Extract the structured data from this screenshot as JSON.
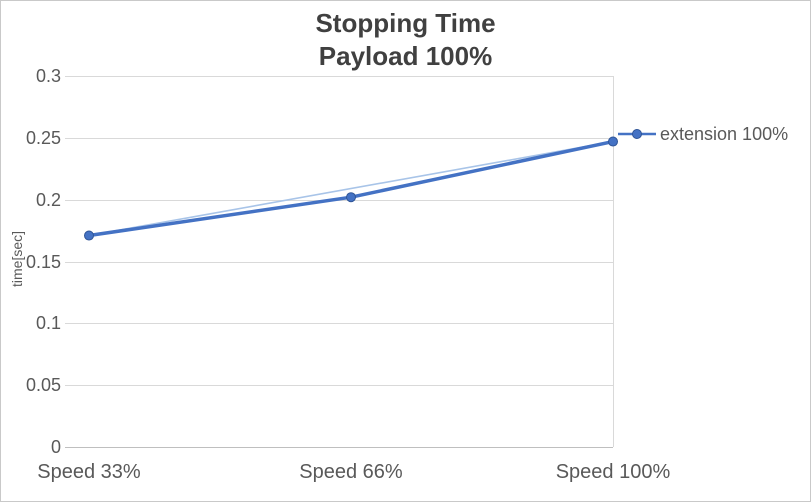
{
  "chart_data": {
    "type": "line",
    "title": "Stopping Time",
    "subtitle": "Payload 100%",
    "xlabel": "",
    "ylabel": "time[sec]",
    "categories": [
      "Speed 33%",
      "Speed 66%",
      "Speed 100%"
    ],
    "series": [
      {
        "name": "extension 100%",
        "values": [
          0.171,
          0.202,
          0.247
        ],
        "color": "#4472C4",
        "marker": "circle"
      }
    ],
    "trendline": {
      "type": "linear",
      "color": "#A8C4E8"
    },
    "ylim": [
      0,
      0.3
    ],
    "yticks": [
      {
        "value": 0,
        "label": "0"
      },
      {
        "value": 0.05,
        "label": "0.05"
      },
      {
        "value": 0.1,
        "label": "0.1"
      },
      {
        "value": 0.15,
        "label": "0.15"
      },
      {
        "value": 0.2,
        "label": "0.2"
      },
      {
        "value": 0.25,
        "label": "0.25"
      },
      {
        "value": 0.3,
        "label": "0.3"
      }
    ],
    "grid": true,
    "legend_position": "right",
    "colors": {
      "grid": "#D9D9D9",
      "axis": "#BFBFBF",
      "text": "#595959",
      "title": "#404040",
      "border": "#C9C9C9",
      "background": "#FFFFFF",
      "marker_outline": "#2F5597"
    }
  }
}
